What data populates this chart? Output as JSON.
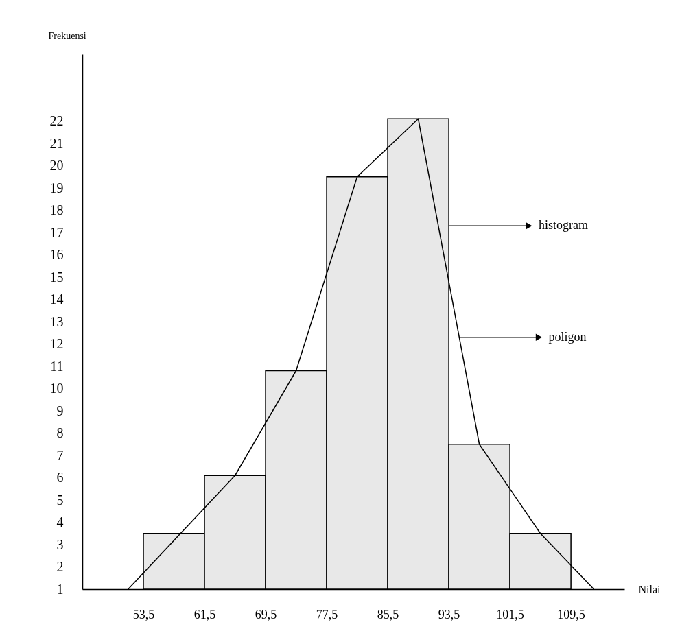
{
  "chart_data": {
    "type": "histogram",
    "xlabel": "Nilai",
    "ylabel": "Frekuensi",
    "bins": [
      53.5,
      61.5,
      69.5,
      77.5,
      85.5,
      93.5,
      101.5,
      109.5
    ],
    "series": [
      {
        "color": "#e8e8e8",
        "values": [
          3.5,
          6.1,
          10.8,
          19.5,
          22.1,
          7.5,
          3.5
        ]
      },
      {
        "type": "line",
        "color": "#000000",
        "x": [
          51.5,
          65.5,
          73.5,
          81.5,
          89.5,
          97.5,
          105.5,
          112.5
        ],
        "values": [
          1,
          6.1,
          10.8,
          19.5,
          22.1,
          7.5,
          3.5,
          1
        ]
      }
    ],
    "xlim": [
      45.5,
      116.5
    ],
    "ylim": [
      1,
      25
    ],
    "xticks": [
      {
        "value": 53.5,
        "label": "53,5"
      },
      {
        "value": 61.5,
        "label": "61,5"
      },
      {
        "value": 69.5,
        "label": "69,5"
      },
      {
        "value": 77.5,
        "label": "77,5"
      },
      {
        "value": 85.5,
        "label": "85,5"
      },
      {
        "value": 93.5,
        "label": "93,5"
      },
      {
        "value": 101.5,
        "label": "101,5"
      },
      {
        "value": 109.5,
        "label": "109,5"
      }
    ],
    "yticks": [
      1,
      2,
      3,
      4,
      5,
      6,
      7,
      8,
      9,
      10,
      11,
      12,
      13,
      14,
      15,
      16,
      17,
      18,
      19,
      20,
      21,
      22
    ],
    "annotations": [
      {
        "text": "histogram",
        "x": 93.5,
        "y": 17.3
      },
      {
        "text": "poligon",
        "x": 94.8,
        "y": 12.3
      }
    ],
    "grid": false,
    "marker": "none",
    "line_style": "solid"
  }
}
